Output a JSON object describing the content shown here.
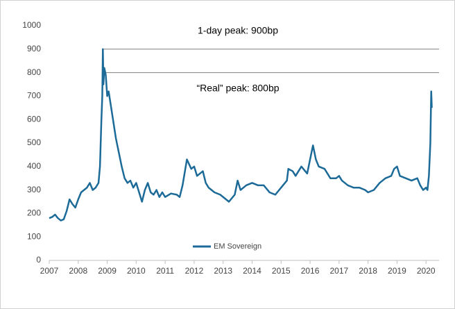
{
  "chart_data": {
    "type": "line",
    "xlim": [
      2007,
      2020.45
    ],
    "xticks": [
      2007,
      2008,
      2009,
      2010,
      2011,
      2012,
      2013,
      2014,
      2015,
      2016,
      2017,
      2018,
      2019,
      2020
    ],
    "ylim": [
      0,
      1000
    ],
    "yticks": [
      0,
      100,
      200,
      300,
      400,
      500,
      600,
      700,
      800,
      900,
      1000
    ],
    "grid": false,
    "legend": "bottom",
    "x": [
      2007.0,
      2007.1,
      2007.2,
      2007.3,
      2007.4,
      2007.5,
      2007.6,
      2007.7,
      2007.8,
      2007.9,
      2008.0,
      2008.1,
      2008.2,
      2008.3,
      2008.4,
      2008.5,
      2008.6,
      2008.7,
      2008.75,
      2008.8,
      2008.83,
      2008.85,
      2008.87,
      2008.9,
      2008.95,
      2009.0,
      2009.05,
      2009.1,
      2009.2,
      2009.3,
      2009.4,
      2009.5,
      2009.6,
      2009.7,
      2009.8,
      2009.9,
      2010.0,
      2010.1,
      2010.2,
      2010.3,
      2010.4,
      2010.5,
      2010.6,
      2010.7,
      2010.8,
      2010.9,
      2011.0,
      2011.2,
      2011.4,
      2011.5,
      2011.6,
      2011.75,
      2011.9,
      2012.0,
      2012.1,
      2012.3,
      2012.4,
      2012.5,
      2012.7,
      2012.9,
      2013.0,
      2013.1,
      2013.2,
      2013.4,
      2013.5,
      2013.6,
      2013.8,
      2014.0,
      2014.2,
      2014.4,
      2014.6,
      2014.8,
      2015.0,
      2015.2,
      2015.25,
      2015.4,
      2015.5,
      2015.7,
      2015.9,
      2016.0,
      2016.1,
      2016.2,
      2016.3,
      2016.5,
      2016.7,
      2016.9,
      2017.0,
      2017.1,
      2017.3,
      2017.5,
      2017.7,
      2017.9,
      2018.0,
      2018.2,
      2018.4,
      2018.6,
      2018.8,
      2018.9,
      2019.0,
      2019.1,
      2019.3,
      2019.5,
      2019.7,
      2019.8,
      2019.9,
      2020.0,
      2020.05,
      2020.1,
      2020.15,
      2020.18,
      2020.2
    ],
    "series": [
      {
        "name": "EM Sovereign",
        "color": "#1b6a98",
        "values": [
          180,
          185,
          195,
          180,
          170,
          175,
          210,
          260,
          240,
          225,
          260,
          290,
          300,
          310,
          330,
          300,
          310,
          330,
          400,
          600,
          700,
          900,
          750,
          820,
          790,
          700,
          720,
          680,
          600,
          520,
          460,
          400,
          350,
          330,
          340,
          310,
          330,
          290,
          250,
          300,
          330,
          290,
          280,
          300,
          270,
          290,
          270,
          285,
          280,
          270,
          320,
          430,
          390,
          400,
          360,
          380,
          330,
          310,
          290,
          280,
          270,
          260,
          250,
          280,
          340,
          300,
          320,
          330,
          320,
          320,
          290,
          280,
          310,
          340,
          390,
          380,
          360,
          400,
          370,
          430,
          490,
          430,
          400,
          390,
          350,
          350,
          360,
          340,
          320,
          310,
          310,
          300,
          290,
          300,
          330,
          350,
          360,
          390,
          400,
          360,
          350,
          340,
          350,
          320,
          300,
          310,
          300,
          360,
          500,
          720,
          650
        ]
      }
    ],
    "reference_lines": [
      {
        "value": 900,
        "label": "1-day peak: 900bp",
        "x_start": 2008.85
      },
      {
        "value": 800,
        "label": "“Real” peak: 800bp",
        "x_start": 2008.95
      }
    ]
  }
}
